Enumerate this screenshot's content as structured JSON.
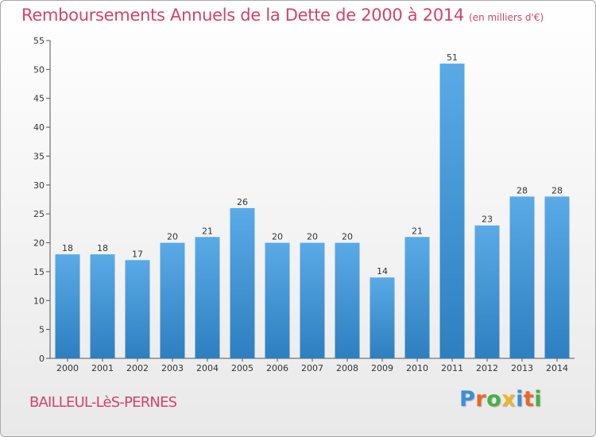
{
  "title": "Remboursements Annuels de la Dette de 2000 à 2014",
  "units": "(en milliers d'€)",
  "commune": "BAILLEUL-LèS-PERNES",
  "brand": {
    "letters": [
      {
        "char": "P",
        "color": "#3a8fd9"
      },
      {
        "char": "r",
        "color": "#e9652a"
      },
      {
        "char": "o",
        "color": "#48b048"
      },
      {
        "char": "x",
        "color": "#f0b428"
      },
      {
        "char": "i",
        "color": "#3a8fd9"
      },
      {
        "char": "t",
        "color": "#e9652a"
      },
      {
        "char": "i",
        "color": "#48b048"
      }
    ]
  },
  "chart_data": {
    "type": "bar",
    "categories": [
      "2000",
      "2001",
      "2002",
      "2003",
      "2004",
      "2005",
      "2006",
      "2007",
      "2008",
      "2009",
      "2010",
      "2011",
      "2012",
      "2013",
      "2014"
    ],
    "values": [
      18,
      18,
      17,
      20,
      21,
      26,
      20,
      20,
      20,
      14,
      21,
      51,
      23,
      28,
      28
    ],
    "title": "Remboursements Annuels de la Dette de 2000 à 2014",
    "xlabel": "",
    "ylabel": "",
    "ylim": [
      0,
      55
    ],
    "yticks": [
      0,
      5,
      10,
      15,
      20,
      25,
      30,
      35,
      40,
      45,
      50,
      55
    ],
    "grid": false,
    "data_labels": true,
    "bar_color_top": "#5aaae6",
    "bar_color_bottom": "#2e7fc0",
    "title_color": "#d0446a"
  }
}
